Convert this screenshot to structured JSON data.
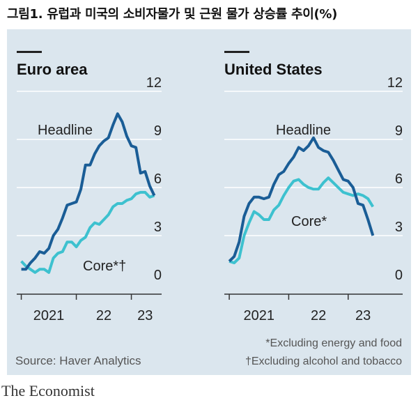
{
  "figure_title": "그림1. 유럽과 미국의 소비자물가 및 근원 물가 상승률 추이(%)",
  "source": "Source: Haver Analytics",
  "footnotes": [
    "*Excluding energy and food",
    "†Excluding alcohol and tobacco"
  ],
  "brand": "The Economist",
  "colors": {
    "headline": "#1a5d96",
    "core": "#3dc1cf",
    "background": "#dbe6ee",
    "axis": "#333333"
  },
  "chart_data": [
    {
      "type": "line",
      "title": "Euro area",
      "x_labels": [
        "2021",
        "22",
        "23"
      ],
      "ylim": [
        0,
        12
      ],
      "yticks": [
        0,
        3,
        6,
        9,
        12
      ],
      "series": [
        {
          "name": "Headline",
          "color": "#1a5d96",
          "x": [
            2021.0,
            2021.083,
            2021.167,
            2021.25,
            2021.333,
            2021.417,
            2021.5,
            2021.583,
            2021.667,
            2021.75,
            2021.833,
            2021.917,
            2022.0,
            2022.083,
            2022.167,
            2022.25,
            2022.333,
            2022.417,
            2022.5,
            2022.583,
            2022.667,
            2022.75,
            2022.833,
            2022.917,
            2023.0,
            2023.083,
            2023.167,
            2023.25,
            2023.333,
            2023.417
          ],
          "values": [
            0.9,
            0.9,
            1.3,
            1.6,
            2.0,
            1.9,
            2.2,
            3.0,
            3.4,
            4.1,
            4.9,
            5.0,
            5.1,
            5.9,
            7.4,
            7.4,
            8.1,
            8.6,
            8.9,
            9.1,
            9.9,
            10.6,
            10.1,
            9.2,
            8.6,
            8.5,
            6.9,
            7.0,
            6.1,
            5.5
          ]
        },
        {
          "name": "Core*†",
          "label": "Core*†",
          "color": "#3dc1cf",
          "x": [
            2021.0,
            2021.083,
            2021.167,
            2021.25,
            2021.333,
            2021.417,
            2021.5,
            2021.583,
            2021.667,
            2021.75,
            2021.833,
            2021.917,
            2022.0,
            2022.083,
            2022.167,
            2022.25,
            2022.333,
            2022.417,
            2022.5,
            2022.583,
            2022.667,
            2022.75,
            2022.833,
            2022.917,
            2023.0,
            2023.083,
            2023.167,
            2023.25,
            2023.333,
            2023.417
          ],
          "values": [
            1.4,
            1.1,
            0.9,
            0.7,
            0.9,
            0.9,
            0.7,
            1.6,
            1.9,
            2.0,
            2.6,
            2.6,
            2.3,
            2.7,
            2.9,
            3.5,
            3.8,
            3.7,
            4.0,
            4.3,
            4.8,
            5.0,
            5.0,
            5.2,
            5.3,
            5.6,
            5.7,
            5.7,
            5.4,
            5.5
          ]
        }
      ]
    },
    {
      "type": "line",
      "title": "United States",
      "x_labels": [
        "2021",
        "22",
        "23"
      ],
      "ylim": [
        0,
        12
      ],
      "yticks": [
        0,
        3,
        6,
        9,
        12
      ],
      "series": [
        {
          "name": "Headline",
          "color": "#1a5d96",
          "x": [
            2021.0,
            2021.083,
            2021.167,
            2021.25,
            2021.333,
            2021.417,
            2021.5,
            2021.583,
            2021.667,
            2021.75,
            2021.833,
            2021.917,
            2022.0,
            2022.083,
            2022.167,
            2022.25,
            2022.333,
            2022.417,
            2022.5,
            2022.583,
            2022.667,
            2022.75,
            2022.833,
            2022.917,
            2023.0,
            2023.083,
            2023.167,
            2023.25,
            2023.333,
            2023.417
          ],
          "values": [
            1.4,
            1.7,
            2.6,
            4.2,
            5.0,
            5.4,
            5.4,
            5.3,
            5.4,
            6.2,
            6.8,
            7.0,
            7.5,
            7.9,
            8.5,
            8.3,
            8.6,
            9.1,
            8.5,
            8.3,
            8.2,
            7.7,
            7.1,
            6.5,
            6.4,
            6.0,
            5.0,
            4.9,
            4.0,
            3.0
          ]
        },
        {
          "name": "Core*",
          "label": "Core*",
          "color": "#3dc1cf",
          "x": [
            2021.0,
            2021.083,
            2021.167,
            2021.25,
            2021.333,
            2021.417,
            2021.5,
            2021.583,
            2021.667,
            2021.75,
            2021.833,
            2021.917,
            2022.0,
            2022.083,
            2022.167,
            2022.25,
            2022.333,
            2022.417,
            2022.5,
            2022.583,
            2022.667,
            2022.75,
            2022.833,
            2022.917,
            2023.0,
            2023.083,
            2023.167,
            2023.25,
            2023.333,
            2023.417
          ],
          "values": [
            1.4,
            1.3,
            1.6,
            3.0,
            3.8,
            4.5,
            4.3,
            4.0,
            4.0,
            4.6,
            4.9,
            5.5,
            6.0,
            6.4,
            6.5,
            6.2,
            6.0,
            5.9,
            5.9,
            6.3,
            6.6,
            6.3,
            6.0,
            5.7,
            5.6,
            5.5,
            5.6,
            5.5,
            5.3,
            4.8
          ]
        }
      ]
    }
  ]
}
